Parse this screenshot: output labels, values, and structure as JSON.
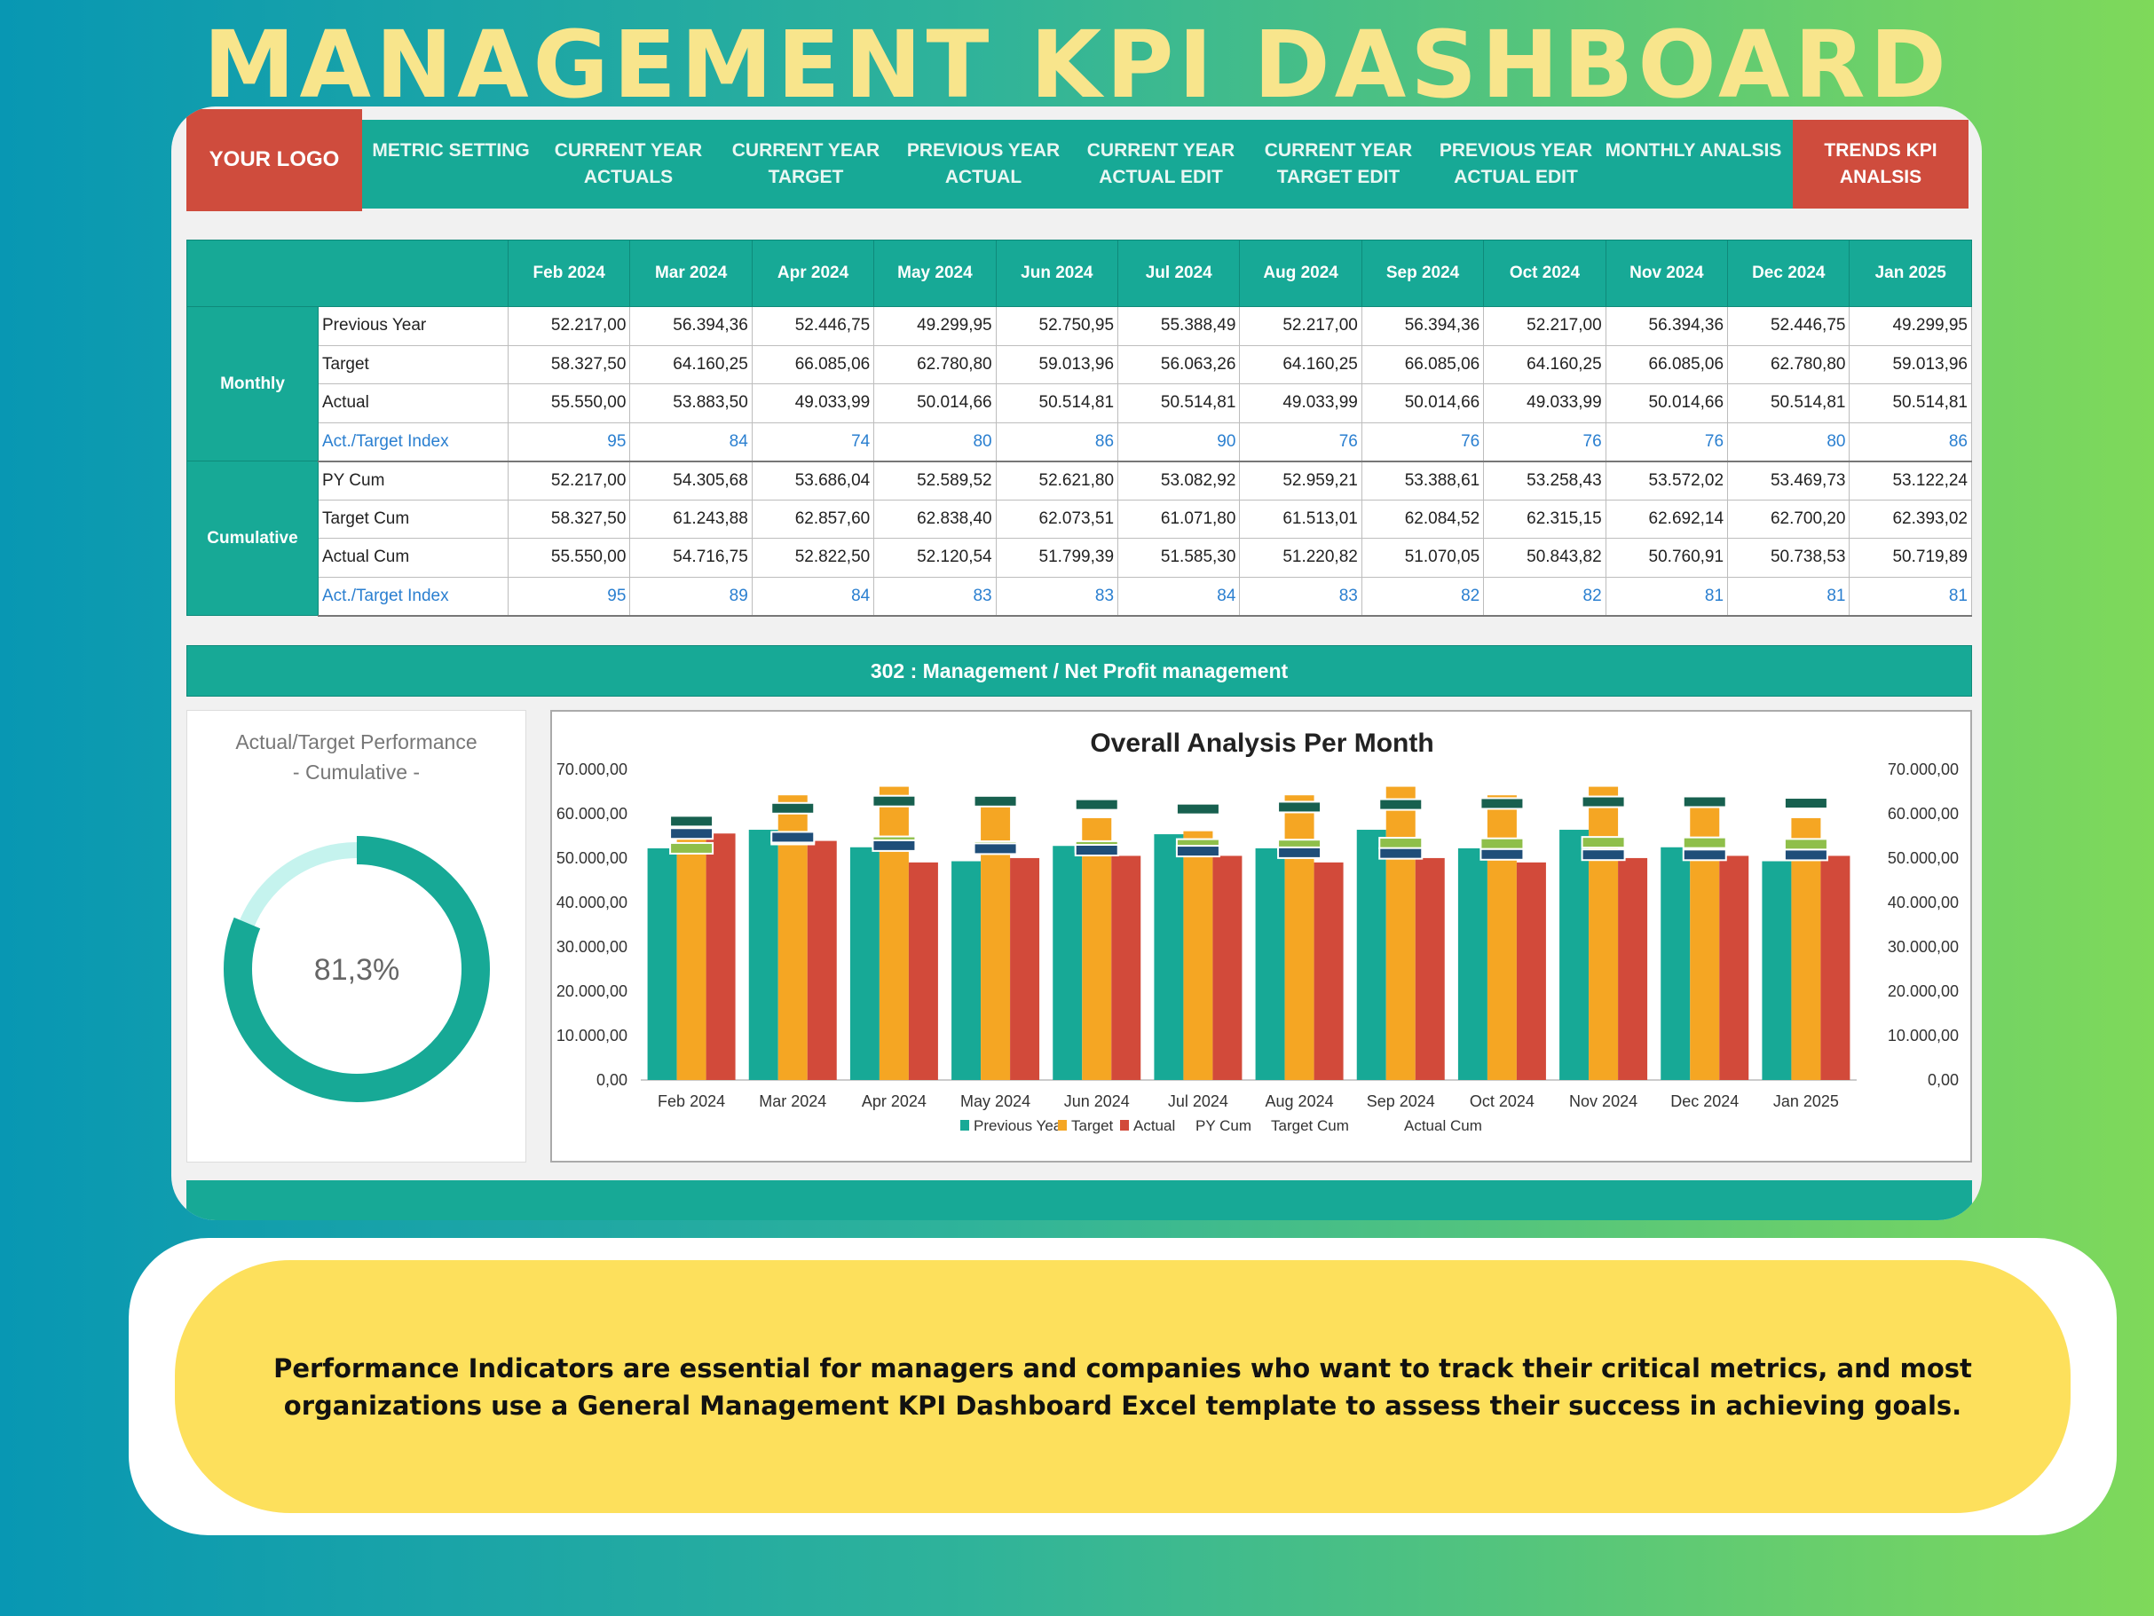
{
  "title": "MANAGEMENT KPI DASHBOARD",
  "nav": {
    "logo": "YOUR LOGO",
    "items": [
      "METRIC SETTING",
      "CURRENT YEAR ACTUALS",
      "CURRENT YEAR TARGET",
      "PREVIOUS YEAR ACTUAL",
      "CURRENT YEAR ACTUAL EDIT",
      "CURRENT YEAR TARGET EDIT",
      "PREVIOUS YEAR ACTUAL EDIT",
      "MONTHLY ANALSIS"
    ],
    "active": "TRENDS KPI ANALSIS"
  },
  "table": {
    "months": [
      "Feb 2024",
      "Mar 2024",
      "Apr 2024",
      "May 2024",
      "Jun 2024",
      "Jul 2024",
      "Aug 2024",
      "Sep 2024",
      "Oct 2024",
      "Nov 2024",
      "Dec 2024",
      "Jan 2025"
    ],
    "groups": [
      {
        "name": "Monthly",
        "rows": [
          {
            "label": "Previous Year",
            "values": [
              "52.217,00",
              "56.394,36",
              "52.446,75",
              "49.299,95",
              "52.750,95",
              "55.388,49",
              "52.217,00",
              "56.394,36",
              "52.217,00",
              "56.394,36",
              "52.446,75",
              "49.299,95"
            ]
          },
          {
            "label": "Target",
            "values": [
              "58.327,50",
              "64.160,25",
              "66.085,06",
              "62.780,80",
              "59.013,96",
              "56.063,26",
              "64.160,25",
              "66.085,06",
              "64.160,25",
              "66.085,06",
              "62.780,80",
              "59.013,96"
            ]
          },
          {
            "label": "Actual",
            "values": [
              "55.550,00",
              "53.883,50",
              "49.033,99",
              "50.014,66",
              "50.514,81",
              "50.514,81",
              "49.033,99",
              "50.014,66",
              "49.033,99",
              "50.014,66",
              "50.514,81",
              "50.514,81"
            ]
          },
          {
            "label": "Act./Target Index",
            "index": true,
            "values": [
              "95",
              "84",
              "74",
              "80",
              "86",
              "90",
              "76",
              "76",
              "76",
              "76",
              "80",
              "86"
            ]
          }
        ]
      },
      {
        "name": "Cumulative",
        "rows": [
          {
            "label": "PY Cum",
            "values": [
              "52.217,00",
              "54.305,68",
              "53.686,04",
              "52.589,52",
              "52.621,80",
              "53.082,92",
              "52.959,21",
              "53.388,61",
              "53.258,43",
              "53.572,02",
              "53.469,73",
              "53.122,24"
            ]
          },
          {
            "label": "Target Cum",
            "values": [
              "58.327,50",
              "61.243,88",
              "62.857,60",
              "62.838,40",
              "62.073,51",
              "61.071,80",
              "61.513,01",
              "62.084,52",
              "62.315,15",
              "62.692,14",
              "62.700,20",
              "62.393,02"
            ]
          },
          {
            "label": "Actual Cum",
            "values": [
              "55.550,00",
              "54.716,75",
              "52.822,50",
              "52.120,54",
              "51.799,39",
              "51.585,30",
              "51.220,82",
              "51.070,05",
              "50.843,82",
              "50.760,91",
              "50.738,53",
              "50.719,89"
            ]
          },
          {
            "label": "Act./Target Index",
            "index": true,
            "values": [
              "95",
              "89",
              "84",
              "83",
              "83",
              "84",
              "83",
              "82",
              "82",
              "81",
              "81",
              "81"
            ]
          }
        ]
      }
    ]
  },
  "banner": "302 : Management / Net Profit management",
  "donut": {
    "title": "Actual/Target Performance",
    "subtitle": "- Cumulative -",
    "value_label": "81,3%",
    "value": 0.813,
    "color": "#17a996",
    "remainder_color": "#c5f3ee"
  },
  "chart_data": {
    "type": "bar",
    "title": "Overall Analysis Per Month",
    "categories": [
      "Feb 2024",
      "Mar 2024",
      "Apr 2024",
      "May 2024",
      "Jun 2024",
      "Jul 2024",
      "Aug 2024",
      "Sep 2024",
      "Oct 2024",
      "Nov 2024",
      "Dec 2024",
      "Jan 2025"
    ],
    "ylim": [
      0,
      70000
    ],
    "yticks": [
      "0,00",
      "10.000,00",
      "20.000,00",
      "30.000,00",
      "40.000,00",
      "50.000,00",
      "60.000,00",
      "70.000,00"
    ],
    "series": [
      {
        "name": "Previous Year",
        "kind": "bar",
        "color": "#17a996",
        "values": [
          52217,
          56394.36,
          52446.75,
          49299.95,
          52750.95,
          55388.49,
          52217,
          56394.36,
          52217,
          56394.36,
          52446.75,
          49299.95
        ]
      },
      {
        "name": "Target",
        "kind": "bar",
        "color": "#f5a623",
        "values": [
          58327.5,
          64160.25,
          66085.06,
          62780.8,
          59013.96,
          56063.26,
          64160.25,
          66085.06,
          64160.25,
          66085.06,
          62780.8,
          59013.96
        ]
      },
      {
        "name": "Actual",
        "kind": "bar",
        "color": "#d24a3a",
        "values": [
          55550,
          53883.5,
          49033.99,
          50014.66,
          50514.81,
          50514.81,
          49033.99,
          50014.66,
          49033.99,
          50014.66,
          50514.81,
          50514.81
        ]
      },
      {
        "name": "PY Cum",
        "kind": "marker",
        "color": "#8fbf4a",
        "values": [
          52217,
          54305.68,
          53686.04,
          52589.52,
          52621.8,
          53082.92,
          52959.21,
          53388.61,
          53258.43,
          53572.02,
          53469.73,
          53122.24
        ]
      },
      {
        "name": "Target Cum",
        "kind": "marker",
        "color": "#17604f",
        "values": [
          58327.5,
          61243.88,
          62857.6,
          62838.4,
          62073.51,
          61071.8,
          61513.01,
          62084.52,
          62315.15,
          62692.14,
          62700.2,
          62393.02
        ]
      },
      {
        "name": "Actual Cum",
        "kind": "marker",
        "color": "#1f4e79",
        "values": [
          55550,
          54716.75,
          52822.5,
          52120.54,
          51799.39,
          51585.3,
          51220.82,
          51070.05,
          50843.82,
          50760.91,
          50738.53,
          50719.89
        ]
      }
    ],
    "legend": "bottom"
  },
  "footer_text": "Performance Indicators are essential for managers and companies who want to track their critical metrics, and most organizations use a General Management KPI Dashboard Excel template to assess their success in achieving goals."
}
